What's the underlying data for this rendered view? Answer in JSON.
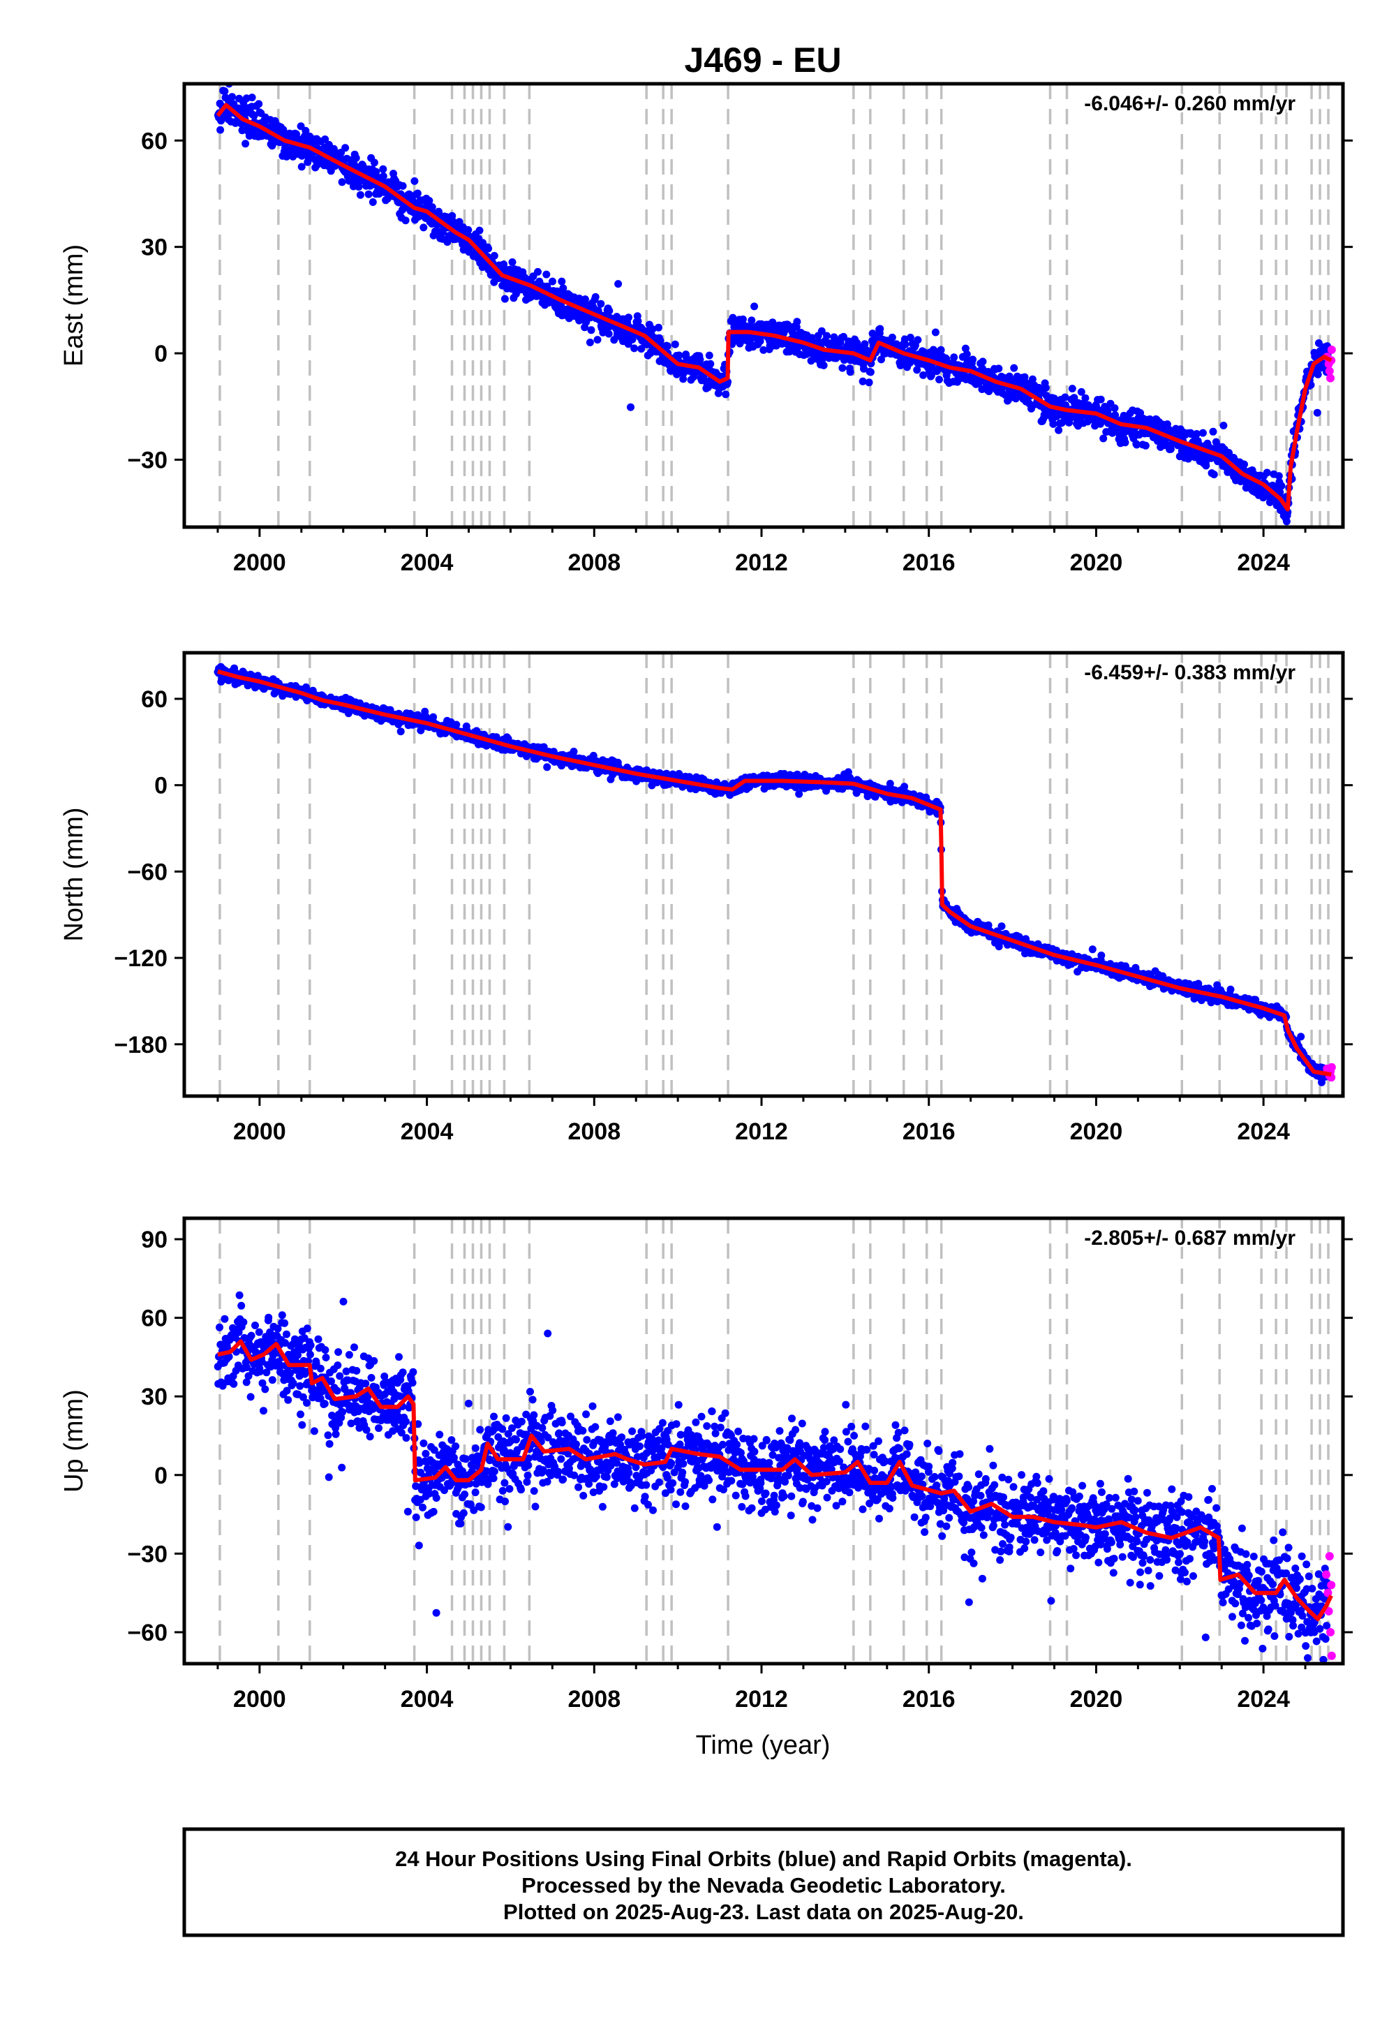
{
  "title": "J469 - EU",
  "xlabel": "Time (year)",
  "footer": {
    "line1": "24 Hour Positions Using Final Orbits (blue) and Rapid Orbits (magenta).",
    "line2": "Processed by the Nevada Geodetic Laboratory.",
    "line3": "Plotted on 2025-Aug-23. Last data on 2025-Aug-20."
  },
  "colors": {
    "final_orbits": "#0000ff",
    "rapid_orbits": "#ff00ff",
    "model": "#ff0000",
    "event_lines": "#c0c0c0"
  },
  "chart_data": [
    {
      "type": "scatter",
      "name": "east",
      "ylabel": "East (mm)",
      "rate": "-6.046+/- 0.260 mm/yr",
      "xlim": [
        1998.2,
        2025.9
      ],
      "ylim": [
        -49,
        76
      ],
      "xticks": [
        2000,
        2004,
        2008,
        2012,
        2016,
        2020,
        2024
      ],
      "xtick_labels": [
        "2000",
        "2004",
        "2008",
        "2012",
        "2016",
        "2020",
        "2024"
      ],
      "yticks": [
        60,
        30,
        0,
        -30
      ],
      "ytick_labels": [
        "60",
        "30",
        "0",
        "−30"
      ],
      "grid": false,
      "event_lines": [
        1999.05,
        2000.45,
        2001.2,
        2003.7,
        2004.6,
        2004.9,
        2005.1,
        2005.3,
        2005.5,
        2005.85,
        2006.45,
        2009.25,
        2009.65,
        2009.85,
        2011.2,
        2014.2,
        2014.6,
        2015.4,
        2015.95,
        2016.3,
        2018.9,
        2019.3,
        2022.05,
        2022.95,
        2023.95,
        2024.3,
        2024.55,
        2025.15,
        2025.35,
        2025.55
      ],
      "model": [
        [
          1999.0,
          67
        ],
        [
          1999.2,
          70
        ],
        [
          1999.6,
          66
        ],
        [
          2000.0,
          64
        ],
        [
          2000.6,
          60
        ],
        [
          2001.2,
          58
        ],
        [
          2002.0,
          53
        ],
        [
          2003.0,
          47
        ],
        [
          2003.7,
          41
        ],
        [
          2004.0,
          40
        ],
        [
          2004.7,
          34
        ],
        [
          2005.0,
          32
        ],
        [
          2005.8,
          22
        ],
        [
          2006.5,
          19
        ],
        [
          2007.2,
          15
        ],
        [
          2008.0,
          11
        ],
        [
          2008.6,
          8
        ],
        [
          2009.2,
          5
        ],
        [
          2010.0,
          -3
        ],
        [
          2010.5,
          -4
        ],
        [
          2011.0,
          -8
        ],
        [
          2011.19,
          -7
        ],
        [
          2011.21,
          6
        ],
        [
          2011.7,
          6
        ],
        [
          2012.3,
          5
        ],
        [
          2013.0,
          3
        ],
        [
          2013.5,
          1
        ],
        [
          2014.2,
          0
        ],
        [
          2014.6,
          -2
        ],
        [
          2014.8,
          3
        ],
        [
          2015.4,
          0
        ],
        [
          2016.0,
          -2
        ],
        [
          2016.5,
          -4
        ],
        [
          2017.0,
          -5
        ],
        [
          2017.6,
          -8
        ],
        [
          2018.2,
          -10
        ],
        [
          2018.9,
          -15
        ],
        [
          2019.3,
          -16
        ],
        [
          2020.0,
          -17
        ],
        [
          2020.6,
          -20
        ],
        [
          2021.2,
          -21
        ],
        [
          2022.05,
          -25
        ],
        [
          2023.0,
          -29
        ],
        [
          2023.5,
          -34
        ],
        [
          2024.0,
          -37
        ],
        [
          2024.4,
          -41
        ],
        [
          2024.58,
          -44
        ],
        [
          2024.65,
          -32
        ],
        [
          2024.8,
          -22
        ],
        [
          2025.0,
          -10
        ],
        [
          2025.2,
          -3
        ],
        [
          2025.45,
          -1
        ],
        [
          2025.62,
          -2
        ]
      ],
      "noise_mm": 2.2,
      "rapid_points": [
        [
          2025.52,
          -1
        ],
        [
          2025.56,
          -3
        ],
        [
          2025.58,
          -5
        ],
        [
          2025.6,
          -7
        ],
        [
          2025.62,
          -2
        ],
        [
          2025.63,
          1
        ]
      ]
    },
    {
      "type": "scatter",
      "name": "north",
      "ylabel": "North (mm)",
      "rate": "-6.459+/- 0.383 mm/yr",
      "xlim": [
        1998.2,
        2025.9
      ],
      "ylim": [
        -216,
        92
      ],
      "xticks": [
        2000,
        2004,
        2008,
        2012,
        2016,
        2020,
        2024
      ],
      "xtick_labels": [
        "2000",
        "2004",
        "2008",
        "2012",
        "2016",
        "2020",
        "2024"
      ],
      "yticks": [
        60,
        0,
        -60,
        -120,
        -180
      ],
      "ytick_labels": [
        "60",
        "0",
        "−60",
        "−120",
        "−180"
      ],
      "grid": false,
      "event_lines": [
        1999.05,
        2000.45,
        2001.2,
        2003.7,
        2004.6,
        2004.9,
        2005.1,
        2005.3,
        2005.5,
        2005.85,
        2006.45,
        2009.25,
        2009.65,
        2009.85,
        2011.2,
        2014.2,
        2014.6,
        2015.4,
        2015.95,
        2016.3,
        2018.9,
        2019.3,
        2022.05,
        2022.95,
        2023.95,
        2024.3,
        2024.55,
        2025.15,
        2025.35,
        2025.55
      ],
      "model": [
        [
          1999.0,
          79
        ],
        [
          1999.5,
          75
        ],
        [
          2000.0,
          72
        ],
        [
          2000.5,
          68
        ],
        [
          2001.0,
          64
        ],
        [
          2001.5,
          59
        ],
        [
          2002.0,
          56
        ],
        [
          2003.0,
          49
        ],
        [
          2004.0,
          43
        ],
        [
          2005.0,
          35
        ],
        [
          2006.0,
          27
        ],
        [
          2007.0,
          20
        ],
        [
          2008.0,
          14
        ],
        [
          2009.0,
          8
        ],
        [
          2010.0,
          3
        ],
        [
          2011.0,
          -2
        ],
        [
          2011.3,
          -3
        ],
        [
          2011.6,
          3
        ],
        [
          2012.5,
          3
        ],
        [
          2013.5,
          2
        ],
        [
          2014.2,
          1
        ],
        [
          2015.0,
          -6
        ],
        [
          2015.6,
          -9
        ],
        [
          2016.28,
          -17
        ],
        [
          2016.3,
          -45
        ],
        [
          2016.32,
          -83
        ],
        [
          2016.5,
          -88
        ],
        [
          2017.0,
          -98
        ],
        [
          2018.0,
          -108
        ],
        [
          2019.0,
          -118
        ],
        [
          2020.0,
          -125
        ],
        [
          2021.0,
          -133
        ],
        [
          2022.0,
          -141
        ],
        [
          2023.0,
          -147
        ],
        [
          2024.0,
          -155
        ],
        [
          2024.5,
          -160
        ],
        [
          2024.58,
          -170
        ],
        [
          2024.8,
          -183
        ],
        [
          2025.2,
          -199
        ],
        [
          2025.62,
          -201
        ]
      ],
      "noise_mm": 2.2,
      "rapid_points": [
        [
          2025.52,
          -197
        ],
        [
          2025.56,
          -200
        ],
        [
          2025.58,
          -202
        ],
        [
          2025.6,
          -199
        ],
        [
          2025.62,
          -203
        ],
        [
          2025.63,
          -196
        ]
      ]
    },
    {
      "type": "scatter",
      "name": "up",
      "ylabel": "Up (mm)",
      "rate": "-2.805+/- 0.687 mm/yr",
      "xlim": [
        1998.2,
        2025.9
      ],
      "ylim": [
        -72,
        98
      ],
      "xticks": [
        2000,
        2004,
        2008,
        2012,
        2016,
        2020,
        2024
      ],
      "xtick_labels": [
        "2000",
        "2004",
        "2008",
        "2012",
        "2016",
        "2020",
        "2024"
      ],
      "yticks": [
        90,
        60,
        30,
        0,
        -30,
        -60
      ],
      "ytick_labels": [
        "90",
        "60",
        "30",
        "0",
        "−30",
        "−60"
      ],
      "grid": false,
      "event_lines": [
        1999.05,
        2000.45,
        2001.2,
        2003.7,
        2004.6,
        2004.9,
        2005.1,
        2005.3,
        2005.5,
        2005.85,
        2006.45,
        2009.25,
        2009.65,
        2009.85,
        2011.2,
        2014.2,
        2014.6,
        2015.4,
        2015.95,
        2016.3,
        2018.9,
        2019.3,
        2022.05,
        2022.95,
        2023.95,
        2024.3,
        2024.55,
        2025.15,
        2025.35,
        2025.55
      ],
      "model": [
        [
          1999.0,
          46
        ],
        [
          1999.3,
          47
        ],
        [
          1999.55,
          51
        ],
        [
          1999.8,
          44
        ],
        [
          2000.1,
          46
        ],
        [
          2000.4,
          50
        ],
        [
          2000.7,
          42
        ],
        [
          2001.2,
          42
        ],
        [
          2001.25,
          35
        ],
        [
          2001.5,
          37
        ],
        [
          2001.8,
          29
        ],
        [
          2002.3,
          30
        ],
        [
          2002.6,
          33
        ],
        [
          2002.9,
          26
        ],
        [
          2003.3,
          26
        ],
        [
          2003.55,
          30
        ],
        [
          2003.68,
          27
        ],
        [
          2003.72,
          -2
        ],
        [
          2004.2,
          -1
        ],
        [
          2004.45,
          3
        ],
        [
          2004.7,
          -2
        ],
        [
          2005.0,
          -2
        ],
        [
          2005.3,
          2
        ],
        [
          2005.45,
          12
        ],
        [
          2005.7,
          6
        ],
        [
          2006.3,
          6
        ],
        [
          2006.5,
          15
        ],
        [
          2006.8,
          9
        ],
        [
          2007.4,
          10
        ],
        [
          2007.8,
          6
        ],
        [
          2008.5,
          8
        ],
        [
          2008.8,
          6
        ],
        [
          2009.2,
          4
        ],
        [
          2009.7,
          5
        ],
        [
          2009.85,
          10
        ],
        [
          2010.5,
          8
        ],
        [
          2011.0,
          7
        ],
        [
          2011.2,
          5
        ],
        [
          2011.5,
          2
        ],
        [
          2012.0,
          2
        ],
        [
          2012.5,
          2
        ],
        [
          2012.8,
          6
        ],
        [
          2013.2,
          0
        ],
        [
          2014.0,
          1
        ],
        [
          2014.3,
          5
        ],
        [
          2014.6,
          -3
        ],
        [
          2015.0,
          -3
        ],
        [
          2015.3,
          5
        ],
        [
          2015.6,
          -4
        ],
        [
          2016.3,
          -7
        ],
        [
          2016.6,
          -6
        ],
        [
          2017.0,
          -14
        ],
        [
          2017.5,
          -11
        ],
        [
          2018.0,
          -16
        ],
        [
          2018.5,
          -16
        ],
        [
          2019.0,
          -18
        ],
        [
          2019.6,
          -19
        ],
        [
          2020.0,
          -20
        ],
        [
          2020.6,
          -18
        ],
        [
          2021.2,
          -22
        ],
        [
          2021.8,
          -24
        ],
        [
          2022.5,
          -20
        ],
        [
          2022.93,
          -24
        ],
        [
          2022.97,
          -40
        ],
        [
          2023.4,
          -38
        ],
        [
          2023.8,
          -45
        ],
        [
          2024.3,
          -45
        ],
        [
          2024.5,
          -40
        ],
        [
          2024.8,
          -47
        ],
        [
          2025.1,
          -52
        ],
        [
          2025.3,
          -55
        ],
        [
          2025.5,
          -50
        ],
        [
          2025.62,
          -46
        ]
      ],
      "noise_mm": 7.5,
      "rapid_points": [
        [
          2025.5,
          -38
        ],
        [
          2025.54,
          -45
        ],
        [
          2025.56,
          -52
        ],
        [
          2025.58,
          -31
        ],
        [
          2025.6,
          -60
        ],
        [
          2025.62,
          -42
        ],
        [
          2025.63,
          -69
        ]
      ]
    }
  ]
}
